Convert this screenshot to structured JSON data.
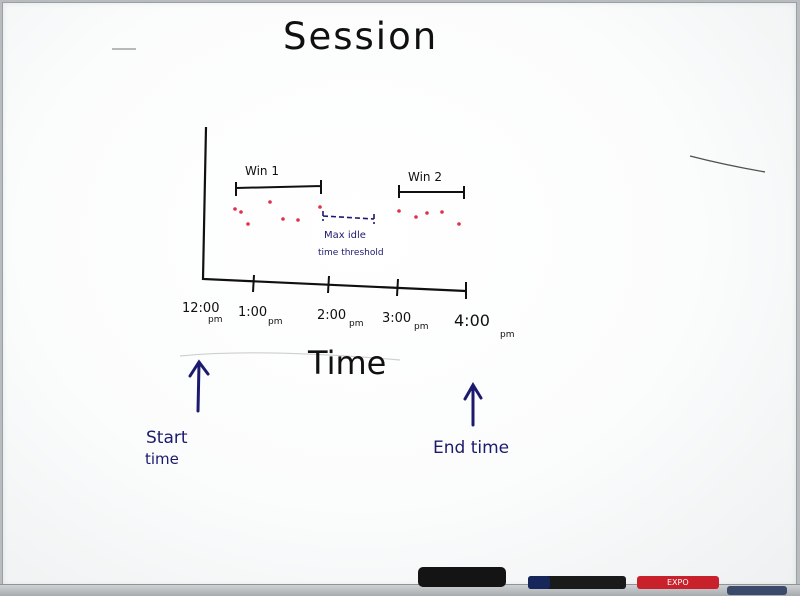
{
  "board": {
    "title": "Session",
    "axis_label": "Time",
    "ticks": [
      {
        "time": "12:00",
        "suffix": "pm"
      },
      {
        "time": "1:00",
        "suffix": "pm"
      },
      {
        "time": "2:00",
        "suffix": "pm"
      },
      {
        "time": "3:00",
        "suffix": "pm"
      },
      {
        "time": "4:00",
        "suffix": "pm"
      }
    ],
    "windows": [
      {
        "label": "Win 1"
      },
      {
        "label": "Win 2"
      }
    ],
    "gap_label_line1": "Max idle",
    "gap_label_line2": "time threshold",
    "start_label_line1": "Start",
    "start_label_line2": "time",
    "end_label": "End time"
  },
  "tray": {
    "marker_brand": "EXPO"
  },
  "colors": {
    "black_ink": "#101010",
    "blue_ink": "#1c1a6e",
    "red_dots": "#e0304a"
  }
}
